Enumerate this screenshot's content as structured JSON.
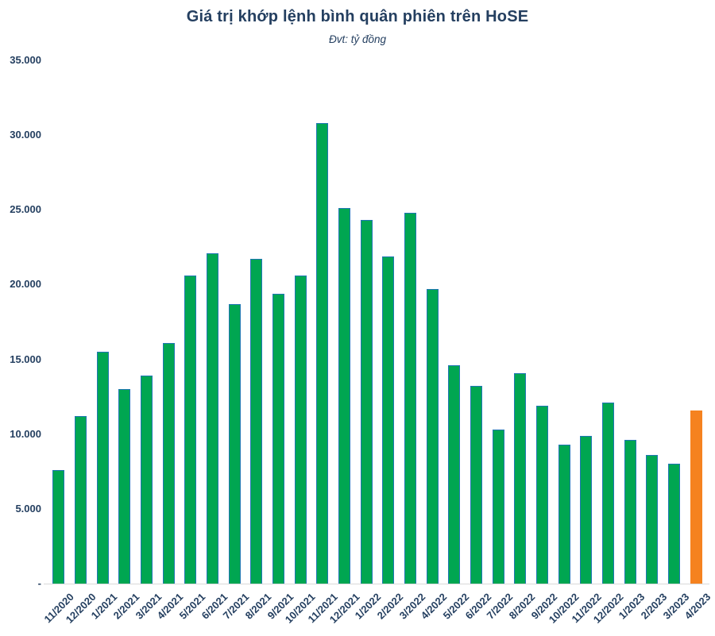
{
  "header": {
    "title": "Giá trị khớp lệnh bình quân phiên trên HoSE",
    "subtitle": "Đvt: tỷ đồng"
  },
  "colors": {
    "bar_green": "#00A651",
    "bar_green_border": "#2077B4",
    "bar_highlight": "#F5821F",
    "text_navy": "#243F60",
    "axis_line": "#D9D9D9"
  },
  "chart_data": {
    "type": "bar",
    "title": "Giá trị khớp lệnh bình quân phiên trên HoSE",
    "subtitle": "Đvt: tỷ đồng",
    "unit": "tỷ đồng",
    "categories": [
      "11/2020",
      "12/2020",
      "1/2021",
      "2/2021",
      "3/2021",
      "4/2021",
      "5/2021",
      "6/2021",
      "7/2021",
      "8/2021",
      "9/2021",
      "10/2021",
      "11/2021",
      "12/2021",
      "1/2022",
      "2/2022",
      "3/2022",
      "4/2022",
      "5/2022",
      "6/2022",
      "7/2022",
      "8/2022",
      "9/2022",
      "10/2022",
      "11/2022",
      "12/2022",
      "1/2023",
      "2/2023",
      "3/2023",
      "4/2023"
    ],
    "values": [
      7600,
      11200,
      15500,
      13000,
      13900,
      16100,
      20600,
      22100,
      18700,
      21700,
      19400,
      20600,
      30800,
      25100,
      24300,
      21900,
      24800,
      19700,
      14600,
      13200,
      10300,
      14100,
      11900,
      9300,
      9900,
      12100,
      9600,
      8600,
      8000,
      11600
    ],
    "highlight_index": 29,
    "xlabel": "",
    "ylabel": "",
    "ylim": [
      0,
      35000
    ],
    "grid": false,
    "legend": "none",
    "y_ticks": [
      {
        "label": "35.000",
        "value": 35000
      },
      {
        "label": "30.000",
        "value": 30000
      },
      {
        "label": "25.000",
        "value": 25000
      },
      {
        "label": "20.000",
        "value": 20000
      },
      {
        "label": "15.000",
        "value": 15000
      },
      {
        "label": "10.000",
        "value": 10000
      },
      {
        "label": "5.000",
        "value": 5000
      },
      {
        "label": "-",
        "value": 0
      }
    ]
  }
}
